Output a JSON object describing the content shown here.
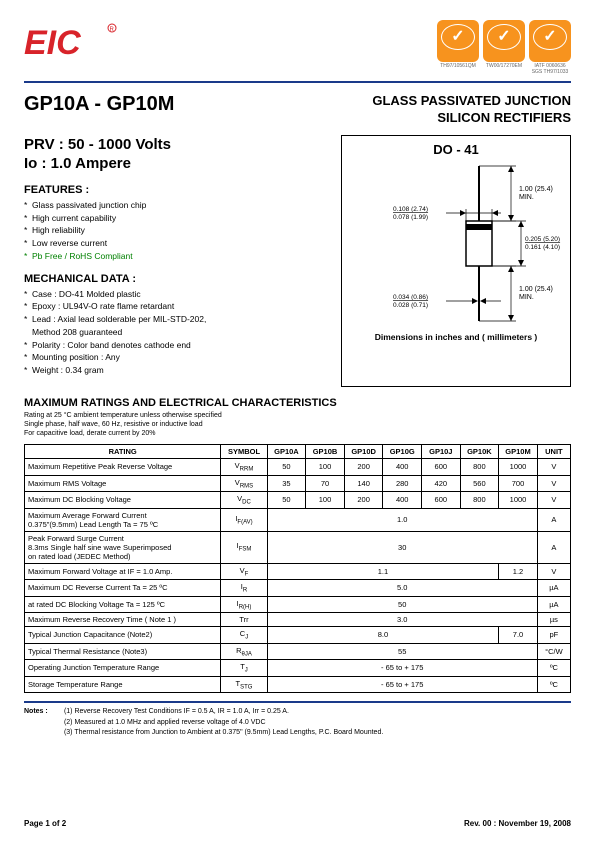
{
  "header": {
    "logo_text": "EIC",
    "logo_color": "#d8232a",
    "certs": [
      {
        "code": "TH97/10561QM"
      },
      {
        "code": "TW00/17270EM"
      },
      {
        "code1": "IATF 0060636",
        "code2": "SGS TH97/1033"
      }
    ]
  },
  "hr_color": "#1a3a8a",
  "title": {
    "part": "GP10A - GP10M",
    "product_line1": "GLASS PASSIVATED JUNCTION",
    "product_line2": "SILICON RECTIFIERS"
  },
  "specs": {
    "prv": "PRV : 50 - 1000 Volts",
    "io": "Io : 1.0 Ampere"
  },
  "features": {
    "heading": "FEATURES :",
    "items": [
      "Glass passivated junction chip",
      "High current capability",
      "High reliability",
      "Low reverse current",
      "Pb Free / RoHS Compliant"
    ]
  },
  "mechanical": {
    "heading": "MECHANICAL  DATA :",
    "items": [
      "Case :  DO-41  Molded plastic",
      "Epoxy : UL94V-O rate flame retardant",
      "Lead : Axial lead solderable per MIL-STD-202,",
      "           Method 208 guaranteed",
      "Polarity : Color band denotes cathode end",
      "Mounting  position : Any",
      "Weight :    0.34  gram"
    ]
  },
  "package": {
    "name": "DO - 41",
    "caption": "Dimensions in inches and ( millimeters )",
    "dims": {
      "lead_dia_top": "0.108 (2.74)",
      "lead_dia_bot": "0.078 (1.99)",
      "body_len_top": "0.205 (5.20)",
      "body_len_bot": "0.161 (4.10)",
      "lead_len": "1.00 (25.4)",
      "lead_len_sub": "MIN.",
      "lead_bot_top": "0.034 (0.86)",
      "lead_bot_bot": "0.028 (0.71)"
    }
  },
  "ratings_section": {
    "title": "MAXIMUM RATINGS AND ELECTRICAL CHARACTERISTICS",
    "sub1": "Rating at 25 °C ambient temperature unless otherwise specified",
    "sub2": "Single phase, half wave, 60 Hz, resistive or inductive load",
    "sub3": "For capacitive load, derate current by 20%"
  },
  "table": {
    "headers": [
      "RATING",
      "SYMBOL",
      "GP10A",
      "GP10B",
      "GP10D",
      "GP10G",
      "GP10J",
      "GP10K",
      "GP10M",
      "UNIT"
    ],
    "rows": [
      {
        "rating": "Maximum Repetitive Peak Reverse Voltage",
        "symbol": "V",
        "sub": "RRM",
        "vals": [
          "50",
          "100",
          "200",
          "400",
          "600",
          "800",
          "1000"
        ],
        "unit": "V"
      },
      {
        "rating": "Maximum RMS Voltage",
        "symbol": "V",
        "sub": "RMS",
        "vals": [
          "35",
          "70",
          "140",
          "280",
          "420",
          "560",
          "700"
        ],
        "unit": "V"
      },
      {
        "rating": "Maximum DC Blocking Voltage",
        "symbol": "V",
        "sub": "DC",
        "vals": [
          "50",
          "100",
          "200",
          "400",
          "600",
          "800",
          "1000"
        ],
        "unit": "V"
      },
      {
        "rating": "Maximum Average Forward Current\n0.375\"(9.5mm) Lead Length  Ta = 75 ºC",
        "symbol": "I",
        "sub": "F(AV)",
        "span_val": "1.0",
        "unit": "A"
      },
      {
        "rating": "Peak Forward Surge Current\n8.3ms Single half sine wave Superimposed\non rated load  (JEDEC Method)",
        "symbol": "I",
        "sub": "FSM",
        "span_val": "30",
        "unit": "A"
      },
      {
        "rating": "Maximum Forward Voltage at IF = 1.0 Amp.",
        "symbol": "V",
        "sub": "F",
        "split": {
          "left": "1.1",
          "left_span": 6,
          "right": "1.2",
          "right_span": 1
        },
        "unit": "V"
      },
      {
        "rating": "Maximum DC Reverse Current      Ta = 25 ºC",
        "symbol": "I",
        "sub": "R",
        "span_val": "5.0",
        "unit": "µA"
      },
      {
        "rating": "at rated DC Blocking Voltage      Ta = 125 ºC",
        "symbol": "I",
        "sub": "R(H)",
        "span_val": "50",
        "unit": "µA"
      },
      {
        "rating": "Maximum Reverse Recovery Time ( Note 1 )",
        "symbol": "Trr",
        "sub": "",
        "span_val": "3.0",
        "unit": "µs"
      },
      {
        "rating": "Typical Junction Capacitance  (Note2)",
        "symbol": "C",
        "sub": "J",
        "split": {
          "left": "8.0",
          "left_span": 6,
          "right": "7.0",
          "right_span": 1
        },
        "unit": "pF"
      },
      {
        "rating": "Typical Thermal Resistance  (Note3)",
        "symbol": "R",
        "sub": "θJA",
        "span_val": "55",
        "unit": "°C/W"
      },
      {
        "rating": "Operating Junction Temperature Range",
        "symbol": "T",
        "sub": "J",
        "span_val": "- 65 to + 175",
        "unit": "ºC"
      },
      {
        "rating": "Storage Temperature Range",
        "symbol": "T",
        "sub": "STG",
        "span_val": "- 65 to + 175",
        "unit": "ºC"
      }
    ]
  },
  "notes": {
    "label": "Notes :",
    "items": [
      "(1) Reverse Recovery Test Conditions IF = 0.5 A, IR  = 1.0 A, Irr = 0.25 A.",
      "(2) Measured at 1.0 MHz and applied  reverse voltage of 4.0 VDC",
      "(3) Thermal resistance from Junction to Ambient at 0.375\" (9.5mm) Lead Lengths, P.C. Board Mounted."
    ]
  },
  "footer": {
    "page": "Page 1 of 2",
    "rev": "Rev. 00 : November 19, 2008"
  }
}
